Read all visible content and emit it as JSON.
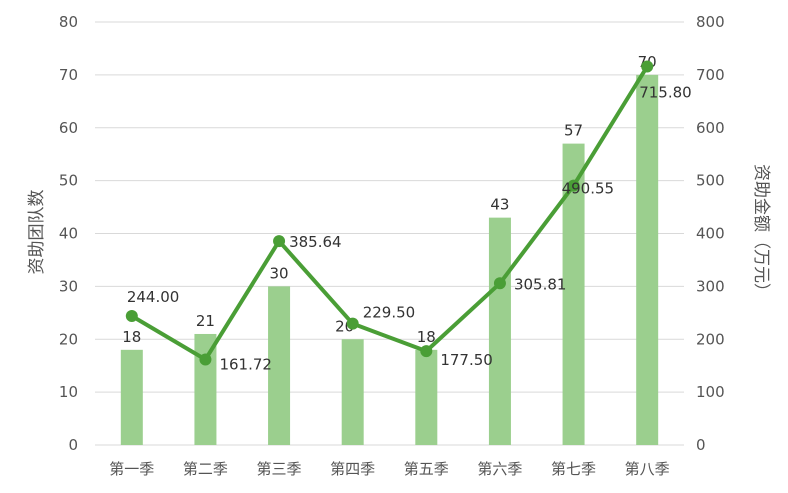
{
  "chart_data": {
    "type": "bar",
    "categories": [
      "第一季",
      "第二季",
      "第三季",
      "第四季",
      "第五季",
      "第六季",
      "第七季",
      "第八季"
    ],
    "series": [
      {
        "name": "",
        "type": "bar",
        "axis": "left",
        "values": [
          18,
          21,
          30,
          20,
          18,
          43,
          57,
          70
        ],
        "labels": [
          "18",
          "21",
          "30",
          "20",
          "18",
          "43",
          "57",
          "70"
        ]
      },
      {
        "name": "",
        "type": "line",
        "axis": "right",
        "values": [
          244.0,
          161.72,
          385.64,
          229.5,
          177.5,
          305.81,
          490.55,
          715.8
        ],
        "labels": [
          "244.00",
          "161.72",
          "385.64",
          "229.50",
          "177.50",
          "305.81",
          "490.55",
          "715.80"
        ]
      }
    ],
    "ylabel": "资助团队数",
    "y2label": "资助金额（万元）",
    "ylim": [
      0,
      80
    ],
    "y2lim": [
      0,
      800
    ],
    "yticks": [
      "0",
      "10",
      "20",
      "30",
      "40",
      "50",
      "60",
      "70",
      "80"
    ],
    "y2ticks": [
      "0",
      "100",
      "200",
      "300",
      "400",
      "500",
      "600",
      "700",
      "800"
    ],
    "grid": true,
    "colors": {
      "bar": "#9bcf8e",
      "line": "#4a9e36",
      "grid": "#d9d9d9"
    }
  }
}
